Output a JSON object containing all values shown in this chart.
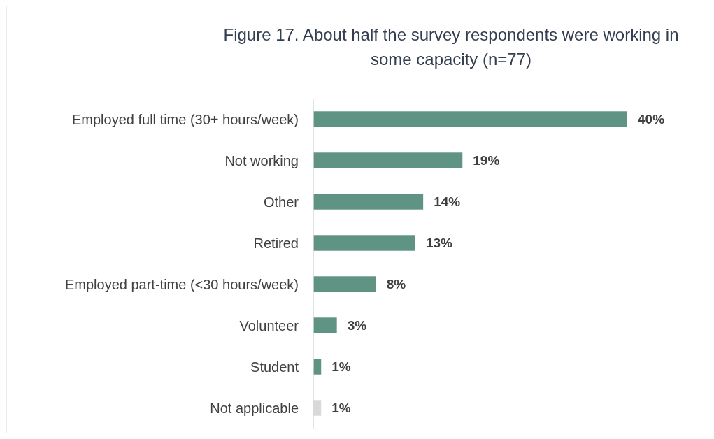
{
  "chart_data": {
    "type": "bar",
    "orientation": "horizontal",
    "title": "Figure 17. About half the survey respondents were working in\nsome capacity (n=77)",
    "categories": [
      "Employed full time (30+ hours/week)",
      "Not working",
      "Other",
      "Retired",
      "Employed part-time (<30 hours/week)",
      "Volunteer",
      "Student",
      "Not applicable"
    ],
    "values": [
      40,
      19,
      14,
      13,
      8,
      3,
      1,
      1
    ],
    "value_labels": [
      "40%",
      "19%",
      "14%",
      "13%",
      "8%",
      "3%",
      "1%",
      "1%"
    ],
    "colors": [
      "#5f9485",
      "#5f9485",
      "#5f9485",
      "#5f9485",
      "#5f9485",
      "#5f9485",
      "#5f9485",
      "#d9d9d9"
    ]
  }
}
